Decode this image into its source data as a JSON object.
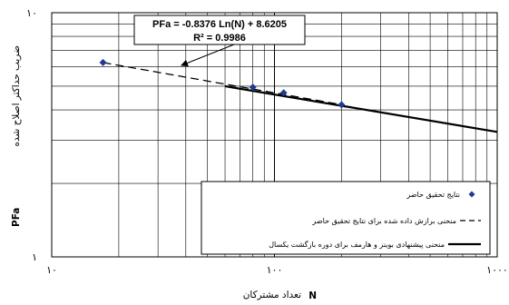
{
  "chart_data": {
    "type": "scatter",
    "x_scale": "log",
    "y_scale": "log",
    "xlim": [
      10,
      1000
    ],
    "ylim": [
      1,
      10
    ],
    "x_ticks": [
      "۱۰",
      "۱۰۰",
      "۱۰۰۰"
    ],
    "y_ticks": [
      "۱۰",
      "۱"
    ],
    "xlabel_text": "تعداد مشترکان",
    "xlabel_symbol": "N",
    "ylabel_text": "ضریب حداکثر اصلاح شده",
    "ylabel_symbol": "PFa",
    "grid": true,
    "legend_position": "bottom-right",
    "equation": {
      "line1": "PFa = -0.8376 Ln(N) + 8.6205",
      "line2": "R² = 0.9986"
    },
    "series": [
      {
        "name": "نتایج تحقیق حاضر",
        "kind": "points",
        "color": "#1f3a93",
        "x": [
          17,
          80,
          110,
          200
        ],
        "y": [
          6.25,
          4.95,
          4.7,
          4.2
        ]
      },
      {
        "name": "منحنی برازش داده شده برای نتایج تحقیق حاضر",
        "kind": "fit-dashed",
        "color": "#000000",
        "x": [
          17,
          200
        ],
        "y": [
          6.25,
          4.2
        ]
      },
      {
        "name": "منحنی پیشنهادی بوینز و هارمف برای دوره بازگشت یکسال",
        "kind": "reference-solid",
        "color": "#000000",
        "x": [
          60,
          1000
        ],
        "y": [
          5.0,
          3.25
        ]
      }
    ]
  }
}
